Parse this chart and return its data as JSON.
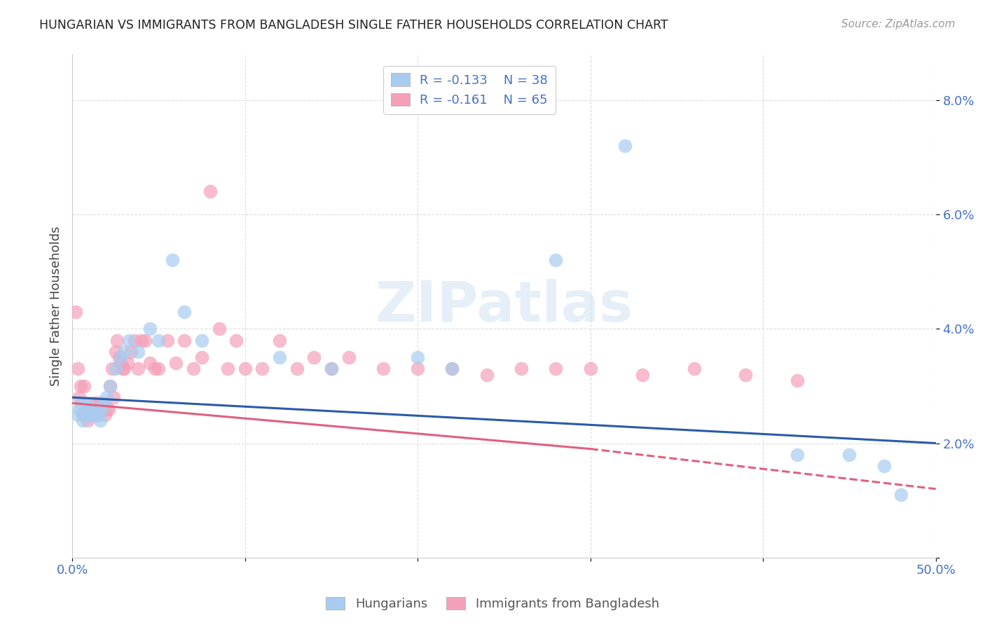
{
  "title": "HUNGARIAN VS IMMIGRANTS FROM BANGLADESH SINGLE FATHER HOUSEHOLDS CORRELATION CHART",
  "source": "Source: ZipAtlas.com",
  "ylabel": "Single Father Households",
  "xlim": [
    0.0,
    0.5
  ],
  "ylim": [
    0.0,
    0.088
  ],
  "yticks": [
    0.0,
    0.02,
    0.04,
    0.06,
    0.08
  ],
  "ytick_labels": [
    "",
    "2.0%",
    "4.0%",
    "6.0%",
    "8.0%"
  ],
  "xticks": [
    0.0,
    0.1,
    0.2,
    0.3,
    0.4,
    0.5
  ],
  "xtick_labels": [
    "0.0%",
    "",
    "",
    "",
    "",
    "50.0%"
  ],
  "series1_label": "Hungarians",
  "series1_R": "-0.133",
  "series1_N": "38",
  "series1_color": "#A8CCF0",
  "series1_line_color": "#2B5BA8",
  "series2_label": "Immigrants from Bangladesh",
  "series2_R": "-0.161",
  "series2_N": "65",
  "series2_color": "#F4A0B8",
  "series2_line_color": "#E06080",
  "watermark": "ZIPatlas",
  "background_color": "#FFFFFF",
  "series1_x": [
    0.003,
    0.004,
    0.005,
    0.006,
    0.007,
    0.008,
    0.009,
    0.01,
    0.011,
    0.012,
    0.013,
    0.014,
    0.015,
    0.016,
    0.017,
    0.018,
    0.02,
    0.022,
    0.025,
    0.028,
    0.03,
    0.033,
    0.038,
    0.045,
    0.05,
    0.058,
    0.065,
    0.075,
    0.12,
    0.15,
    0.2,
    0.22,
    0.28,
    0.32,
    0.42,
    0.45,
    0.47,
    0.48
  ],
  "series1_y": [
    0.025,
    0.026,
    0.027,
    0.024,
    0.025,
    0.026,
    0.027,
    0.025,
    0.026,
    0.025,
    0.025,
    0.026,
    0.025,
    0.024,
    0.026,
    0.027,
    0.028,
    0.03,
    0.033,
    0.035,
    0.036,
    0.038,
    0.036,
    0.04,
    0.038,
    0.052,
    0.043,
    0.038,
    0.035,
    0.033,
    0.035,
    0.033,
    0.052,
    0.072,
    0.018,
    0.018,
    0.016,
    0.011
  ],
  "series2_x": [
    0.002,
    0.003,
    0.004,
    0.005,
    0.006,
    0.007,
    0.008,
    0.009,
    0.01,
    0.011,
    0.012,
    0.013,
    0.014,
    0.015,
    0.016,
    0.017,
    0.018,
    0.019,
    0.02,
    0.021,
    0.022,
    0.023,
    0.024,
    0.025,
    0.026,
    0.027,
    0.028,
    0.029,
    0.03,
    0.032,
    0.034,
    0.036,
    0.038,
    0.04,
    0.042,
    0.045,
    0.048,
    0.05,
    0.055,
    0.06,
    0.065,
    0.07,
    0.075,
    0.08,
    0.085,
    0.09,
    0.095,
    0.1,
    0.11,
    0.12,
    0.13,
    0.14,
    0.15,
    0.16,
    0.18,
    0.2,
    0.22,
    0.24,
    0.26,
    0.28,
    0.3,
    0.33,
    0.36,
    0.39,
    0.42
  ],
  "series2_y": [
    0.043,
    0.033,
    0.028,
    0.03,
    0.025,
    0.03,
    0.025,
    0.024,
    0.026,
    0.025,
    0.027,
    0.025,
    0.027,
    0.025,
    0.027,
    0.026,
    0.027,
    0.025,
    0.026,
    0.026,
    0.03,
    0.033,
    0.028,
    0.036,
    0.038,
    0.035,
    0.034,
    0.033,
    0.033,
    0.034,
    0.036,
    0.038,
    0.033,
    0.038,
    0.038,
    0.034,
    0.033,
    0.033,
    0.038,
    0.034,
    0.038,
    0.033,
    0.035,
    0.064,
    0.04,
    0.033,
    0.038,
    0.033,
    0.033,
    0.038,
    0.033,
    0.035,
    0.033,
    0.035,
    0.033,
    0.033,
    0.033,
    0.032,
    0.033,
    0.033,
    0.033,
    0.032,
    0.033,
    0.032,
    0.031
  ],
  "line1_x0": 0.0,
  "line1_x1": 0.5,
  "line1_y0": 0.028,
  "line1_y1": 0.02,
  "line2_solid_x0": 0.0,
  "line2_solid_x1": 0.3,
  "line2_solid_y0": 0.027,
  "line2_solid_y1": 0.019,
  "line2_dash_x0": 0.3,
  "line2_dash_x1": 0.5,
  "line2_dash_y0": 0.019,
  "line2_dash_y1": 0.012
}
